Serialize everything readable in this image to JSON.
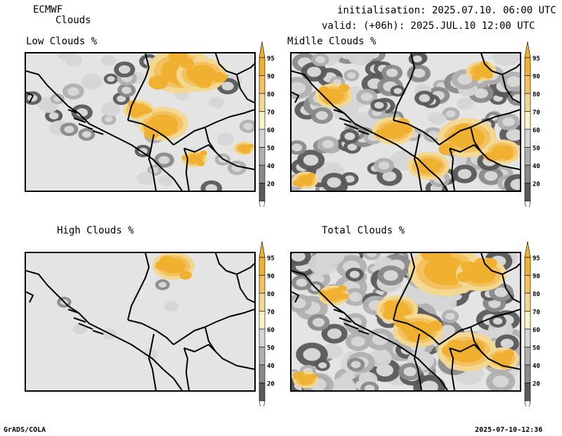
{
  "header": {
    "model": "ECMWF",
    "product": "Clouds",
    "init_line": "initialisation: 2025.07.10. 06:00 UTC",
    "valid_line": "valid: (+06h): 2025.JUL.10 12:00 UTC"
  },
  "panels": [
    {
      "key": "low",
      "title": "Low Clouds %"
    },
    {
      "key": "mid",
      "title": "Midlle Clouds %"
    },
    {
      "key": "high",
      "title": "High Clouds %"
    },
    {
      "key": "total",
      "title": "Total Clouds %"
    }
  ],
  "colorbar": {
    "levels": [
      "95",
      "90",
      "80",
      "70",
      "60",
      "50",
      "40",
      "20"
    ],
    "colors": {
      "c95": "#f0b030",
      "c90": "#f4c160",
      "c80": "#f2d890",
      "c70": "#f8f4c8",
      "c60": "#d6d6d6",
      "c50": "#b0b0b0",
      "c40": "#8a8a8a",
      "c20": "#5a5a5a",
      "background": "#e4e4e4"
    }
  },
  "footer": {
    "left": "GrADS/COLA",
    "right": "2025-07-10-12:36"
  }
}
